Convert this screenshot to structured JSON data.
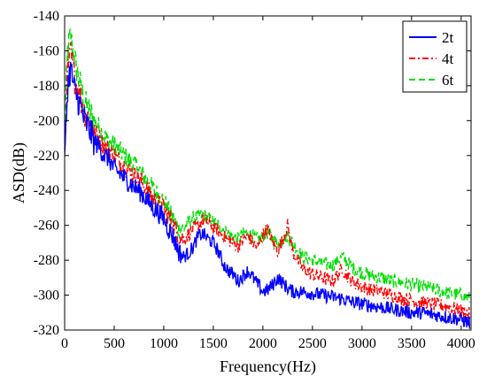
{
  "chart_data": {
    "type": "line",
    "title": "",
    "xlabel": "Frequency(Hz)",
    "ylabel": "ASD(dB)",
    "xlim": [
      0,
      4100
    ],
    "ylim": [
      -320,
      -140
    ],
    "xticks": [
      0,
      500,
      1000,
      1500,
      2000,
      2500,
      3000,
      3500,
      4000
    ],
    "yticks": [
      -320,
      -300,
      -280,
      -260,
      -240,
      -220,
      -200,
      -180,
      -160,
      -140
    ],
    "grid": false,
    "legend_position": "top-right",
    "series": [
      {
        "name": "2t",
        "color": "#0000ff",
        "dash": "solid",
        "points": [
          [
            0,
            -225
          ],
          [
            30,
            -180
          ],
          [
            60,
            -170
          ],
          [
            100,
            -183
          ],
          [
            150,
            -190
          ],
          [
            200,
            -200
          ],
          [
            250,
            -205
          ],
          [
            300,
            -212
          ],
          [
            350,
            -215
          ],
          [
            400,
            -220
          ],
          [
            450,
            -222
          ],
          [
            500,
            -228
          ],
          [
            550,
            -230
          ],
          [
            600,
            -233
          ],
          [
            650,
            -235
          ],
          [
            700,
            -238
          ],
          [
            750,
            -240
          ],
          [
            800,
            -243
          ],
          [
            850,
            -247
          ],
          [
            900,
            -250
          ],
          [
            950,
            -253
          ],
          [
            1000,
            -256
          ],
          [
            1050,
            -262
          ],
          [
            1100,
            -267
          ],
          [
            1150,
            -275
          ],
          [
            1200,
            -278
          ],
          [
            1250,
            -276
          ],
          [
            1300,
            -272
          ],
          [
            1350,
            -266
          ],
          [
            1400,
            -265
          ],
          [
            1450,
            -268
          ],
          [
            1500,
            -270
          ],
          [
            1550,
            -275
          ],
          [
            1600,
            -282
          ],
          [
            1650,
            -286
          ],
          [
            1700,
            -288
          ],
          [
            1750,
            -292
          ],
          [
            1800,
            -289
          ],
          [
            1850,
            -286
          ],
          [
            1900,
            -290
          ],
          [
            1950,
            -294
          ],
          [
            2000,
            -298
          ],
          [
            2050,
            -297
          ],
          [
            2100,
            -294
          ],
          [
            2150,
            -290
          ],
          [
            2200,
            -293
          ],
          [
            2250,
            -296
          ],
          [
            2300,
            -298
          ],
          [
            2400,
            -298
          ],
          [
            2500,
            -299
          ],
          [
            2600,
            -300
          ],
          [
            2700,
            -301
          ],
          [
            2800,
            -302
          ],
          [
            2900,
            -304
          ],
          [
            3000,
            -305
          ],
          [
            3100,
            -306
          ],
          [
            3200,
            -307
          ],
          [
            3300,
            -308
          ],
          [
            3400,
            -309
          ],
          [
            3500,
            -310
          ],
          [
            3600,
            -310
          ],
          [
            3700,
            -311
          ],
          [
            3800,
            -312
          ],
          [
            3900,
            -313
          ],
          [
            4000,
            -314
          ],
          [
            4090,
            -316
          ]
        ]
      },
      {
        "name": "4t",
        "color": "#ff0000",
        "dash": "dash-dot",
        "points": [
          [
            0,
            -218
          ],
          [
            30,
            -172
          ],
          [
            60,
            -162
          ],
          [
            100,
            -175
          ],
          [
            150,
            -185
          ],
          [
            200,
            -195
          ],
          [
            250,
            -200
          ],
          [
            300,
            -207
          ],
          [
            350,
            -210
          ],
          [
            400,
            -215
          ],
          [
            450,
            -217
          ],
          [
            500,
            -220
          ],
          [
            550,
            -223
          ],
          [
            600,
            -226
          ],
          [
            650,
            -229
          ],
          [
            700,
            -231
          ],
          [
            750,
            -233
          ],
          [
            800,
            -237
          ],
          [
            850,
            -241
          ],
          [
            900,
            -245
          ],
          [
            950,
            -248
          ],
          [
            1000,
            -250
          ],
          [
            1050,
            -255
          ],
          [
            1100,
            -260
          ],
          [
            1150,
            -266
          ],
          [
            1200,
            -268
          ],
          [
            1250,
            -265
          ],
          [
            1300,
            -262
          ],
          [
            1350,
            -260
          ],
          [
            1400,
            -257
          ],
          [
            1450,
            -258
          ],
          [
            1500,
            -261
          ],
          [
            1550,
            -263
          ],
          [
            1600,
            -266
          ],
          [
            1650,
            -268
          ],
          [
            1700,
            -270
          ],
          [
            1750,
            -272
          ],
          [
            1800,
            -268
          ],
          [
            1850,
            -266
          ],
          [
            1900,
            -270
          ],
          [
            1950,
            -273
          ],
          [
            2000,
            -265
          ],
          [
            2050,
            -262
          ],
          [
            2100,
            -270
          ],
          [
            2150,
            -275
          ],
          [
            2200,
            -268
          ],
          [
            2250,
            -260
          ],
          [
            2300,
            -275
          ],
          [
            2400,
            -285
          ],
          [
            2500,
            -288
          ],
          [
            2600,
            -290
          ],
          [
            2700,
            -292
          ],
          [
            2800,
            -285
          ],
          [
            2900,
            -292
          ],
          [
            3000,
            -295
          ],
          [
            3100,
            -297
          ],
          [
            3200,
            -298
          ],
          [
            3300,
            -300
          ],
          [
            3400,
            -302
          ],
          [
            3500,
            -303
          ],
          [
            3600,
            -304
          ],
          [
            3700,
            -305
          ],
          [
            3800,
            -306
          ],
          [
            3900,
            -307
          ],
          [
            4000,
            -309
          ],
          [
            4090,
            -311
          ]
        ]
      },
      {
        "name": "6t",
        "color": "#00dd00",
        "dash": "dashed",
        "points": [
          [
            0,
            -208
          ],
          [
            30,
            -160
          ],
          [
            60,
            -152
          ],
          [
            100,
            -165
          ],
          [
            150,
            -178
          ],
          [
            200,
            -190
          ],
          [
            250,
            -195
          ],
          [
            300,
            -200
          ],
          [
            350,
            -204
          ],
          [
            400,
            -209
          ],
          [
            450,
            -212
          ],
          [
            500,
            -214
          ],
          [
            550,
            -217
          ],
          [
            600,
            -220
          ],
          [
            650,
            -223
          ],
          [
            700,
            -225
          ],
          [
            750,
            -228
          ],
          [
            800,
            -232
          ],
          [
            850,
            -236
          ],
          [
            900,
            -240
          ],
          [
            950,
            -243
          ],
          [
            1000,
            -246
          ],
          [
            1050,
            -252
          ],
          [
            1100,
            -257
          ],
          [
            1150,
            -262
          ],
          [
            1200,
            -262
          ],
          [
            1250,
            -258
          ],
          [
            1300,
            -256
          ],
          [
            1350,
            -255
          ],
          [
            1400,
            -254
          ],
          [
            1450,
            -256
          ],
          [
            1500,
            -258
          ],
          [
            1550,
            -260
          ],
          [
            1600,
            -262
          ],
          [
            1650,
            -265
          ],
          [
            1700,
            -266
          ],
          [
            1750,
            -268
          ],
          [
            1800,
            -265
          ],
          [
            1850,
            -264
          ],
          [
            1900,
            -266
          ],
          [
            1950,
            -268
          ],
          [
            2000,
            -266
          ],
          [
            2050,
            -264
          ],
          [
            2100,
            -268
          ],
          [
            2150,
            -270
          ],
          [
            2200,
            -268
          ],
          [
            2250,
            -266
          ],
          [
            2300,
            -270
          ],
          [
            2400,
            -278
          ],
          [
            2500,
            -280
          ],
          [
            2600,
            -282
          ],
          [
            2700,
            -283
          ],
          [
            2800,
            -278
          ],
          [
            2900,
            -284
          ],
          [
            3000,
            -287
          ],
          [
            3100,
            -289
          ],
          [
            3200,
            -290
          ],
          [
            3300,
            -292
          ],
          [
            3400,
            -293
          ],
          [
            3500,
            -294
          ],
          [
            3600,
            -295
          ],
          [
            3700,
            -296
          ],
          [
            3800,
            -298
          ],
          [
            3900,
            -299
          ],
          [
            4000,
            -300
          ],
          [
            4090,
            -302
          ]
        ]
      }
    ]
  }
}
